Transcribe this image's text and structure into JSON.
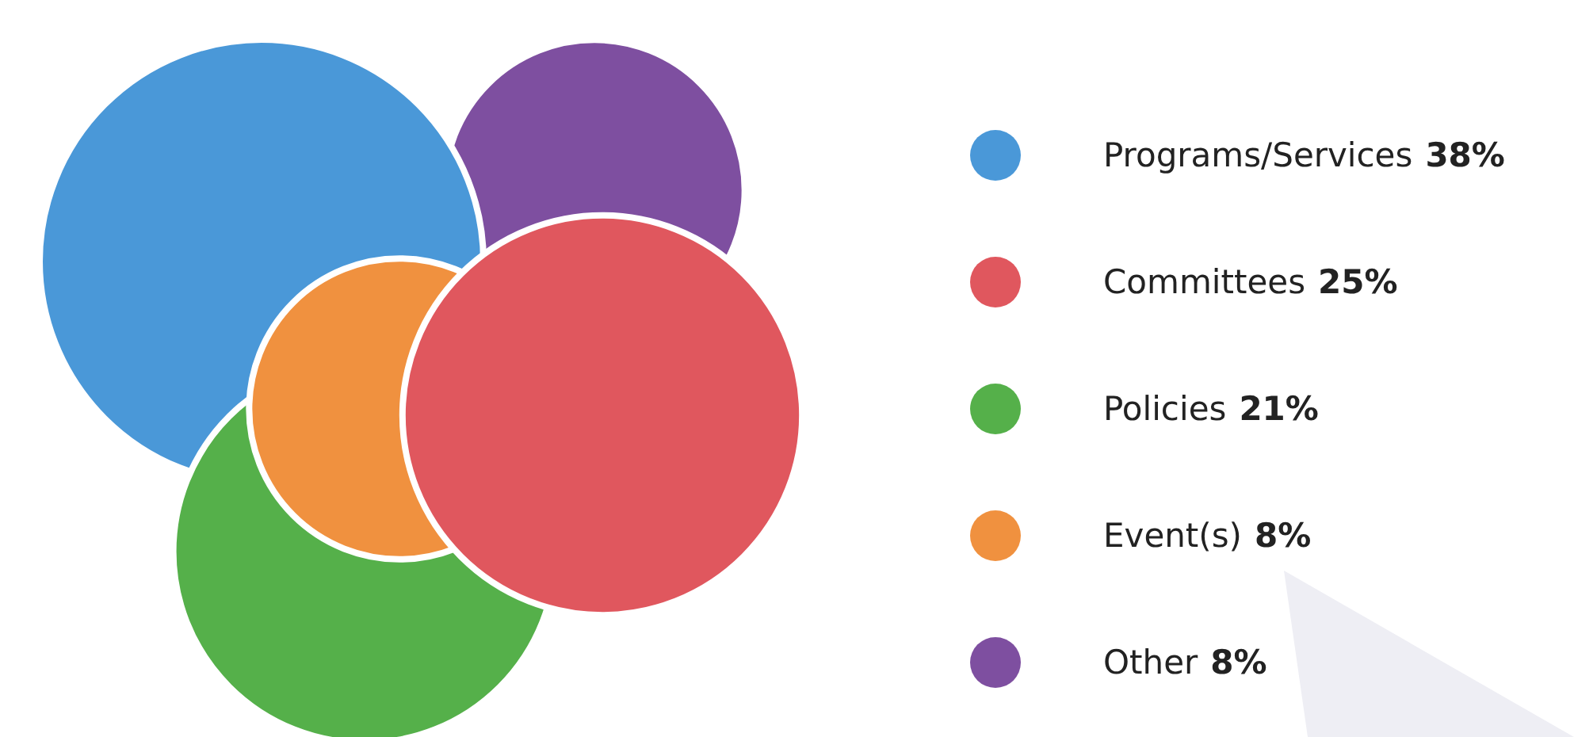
{
  "chart_data": {
    "type": "other",
    "categories": [
      "Programs/Services",
      "Committees",
      "Policies",
      "Event(s)",
      "Other"
    ],
    "values": [
      38,
      25,
      21,
      8,
      8
    ],
    "value_labels": [
      "38%",
      "25%",
      "21%",
      "8%",
      "8%"
    ],
    "colors": [
      "#4a98d8",
      "#e0575e",
      "#55b04a",
      "#f0913f",
      "#7e4fa0"
    ]
  }
}
